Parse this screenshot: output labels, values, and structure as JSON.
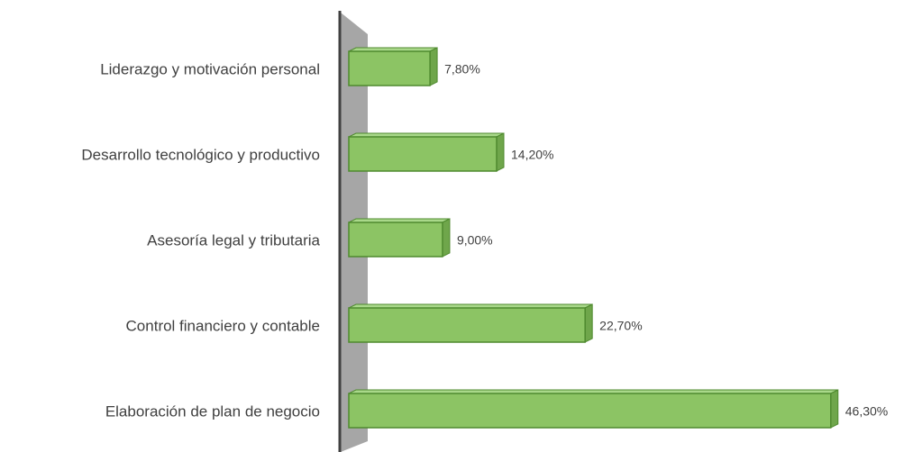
{
  "chart_data": {
    "type": "bar",
    "orientation": "horizontal",
    "categories": [
      "Liderazgo y motivación personal",
      "Desarrollo tecnológico y productivo",
      "Asesoría legal y tributaria",
      "Control financiero y contable",
      "Elaboración de plan de negocio"
    ],
    "values": [
      7.8,
      14.2,
      9.0,
      22.7,
      46.3
    ],
    "value_labels": [
      "7,80%",
      "14,20%",
      "9,00%",
      "22,70%",
      "46,30%"
    ],
    "color": "#8cc464"
  }
}
